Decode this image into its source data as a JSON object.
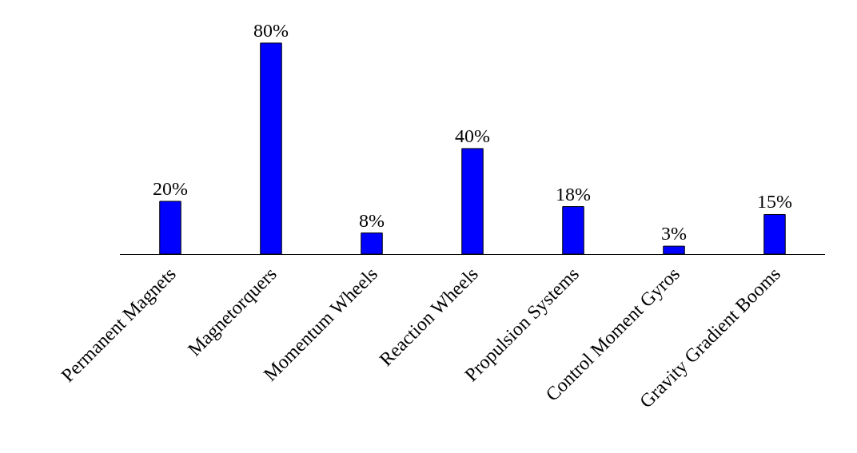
{
  "chart_data": {
    "type": "bar",
    "categories": [
      "Permanent Magnets",
      "Magnetorquers",
      "Momentum Wheels",
      "Reaction Wheels",
      "Propulsion Systems",
      "Control Moment Gyros",
      "Gravity Gradient Booms"
    ],
    "values": [
      20,
      80,
      8,
      40,
      18,
      3,
      15
    ],
    "value_labels": [
      "20%",
      "80%",
      "8%",
      "40%",
      "18%",
      "3%",
      "15%"
    ],
    "color": "#0000ff",
    "legend": false,
    "tick_labels": "x"
  }
}
